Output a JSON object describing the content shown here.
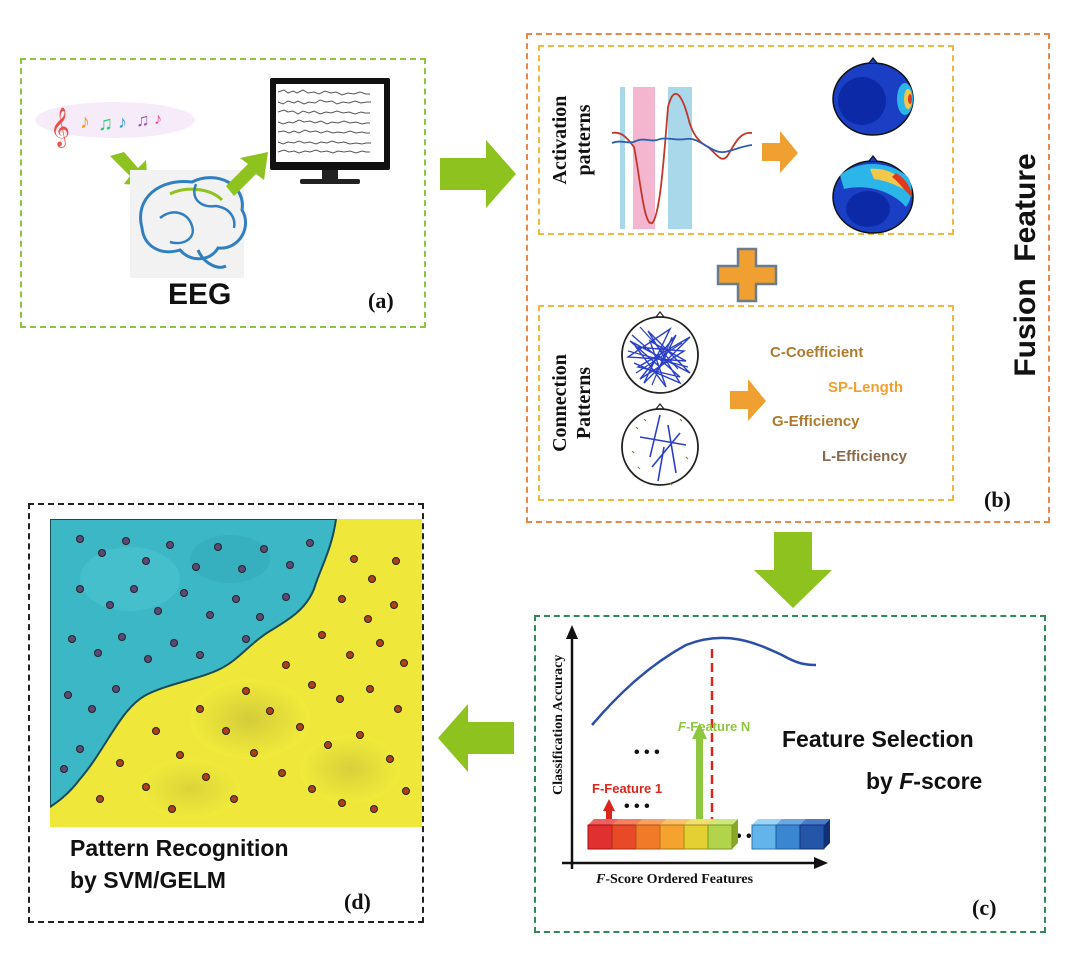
{
  "panel_a": {
    "eeg_label": "EEG",
    "tag": "(a)"
  },
  "panel_b": {
    "activation_line1": "Activation",
    "activation_line2": "patterns",
    "connection_line1": "Connection",
    "connection_line2": "Patterns",
    "metrics": [
      "C-Coefficient",
      "SP-Length",
      "G-Efficiency",
      "L-Efficiency"
    ],
    "fusion_label": "Fusion  Feature",
    "tag": "(b)"
  },
  "panel_c": {
    "y_axis": "Classification Accuracy",
    "x_axis_prefix": "F",
    "x_axis_rest": "-Score Ordered Features",
    "feature_n_prefix": "F",
    "feature_n_rest": "-Feature N",
    "feature_1": "F-Feature 1",
    "dots": "• • •",
    "title_line1": "Feature Selection",
    "title_line2_pre": "by ",
    "title_line2_italic": "F",
    "title_line2_post": "-score",
    "tag": "(c)"
  },
  "panel_d": {
    "title_line1": "Pattern Recognition",
    "title_line2": "by SVM/GELM",
    "tag": "(d)"
  },
  "colors": {
    "green_border": "#8cc63f",
    "orange_border": "#e8884a",
    "yellow_border": "#f0b840",
    "teal_border": "#2e8b57",
    "black_border": "#222222",
    "arrow_green": "#8dc21f",
    "arrow_orange": "#f0a030",
    "metric_brown": "#b07a2e",
    "metric_orange": "#f0a030",
    "curve_blue": "#2a4fa8",
    "red": "#d9261c",
    "light_green": "#8dc63f"
  }
}
